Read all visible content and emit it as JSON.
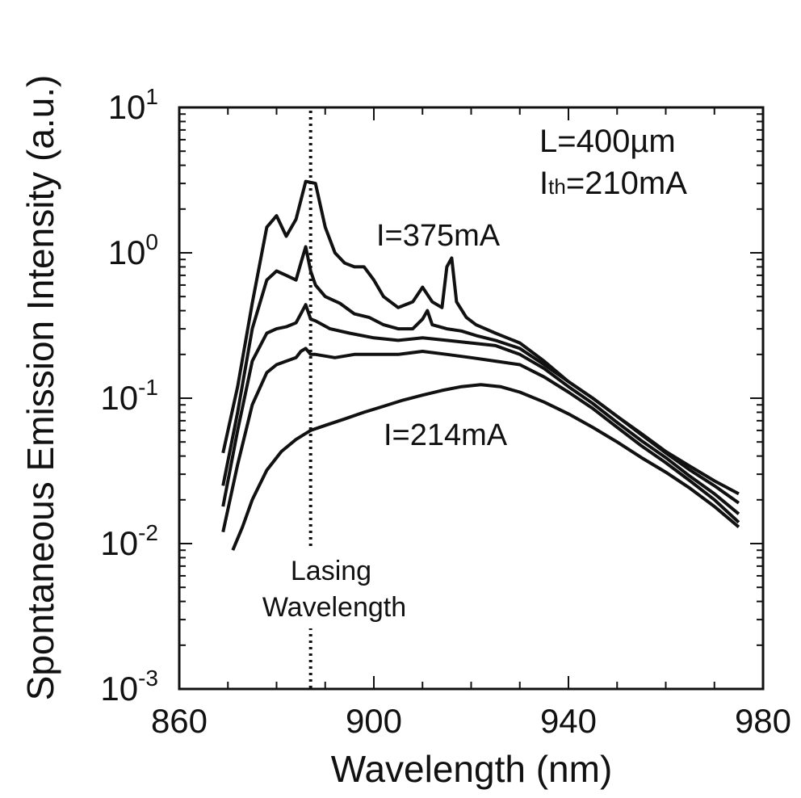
{
  "chart_data": {
    "type": "line",
    "xlabel": "Wavelength (nm)",
    "ylabel": "Spontaneous Emission Intensity (a.u.)",
    "xlim": [
      860,
      980
    ],
    "ylim": [
      0.001,
      10
    ],
    "yscale": "log",
    "x_ticks": [
      "860",
      "900",
      "940",
      "980"
    ],
    "y_ticks": [
      {
        "base": "10",
        "exp": "1"
      },
      {
        "base": "10",
        "exp": "0"
      },
      {
        "base": "10",
        "exp": "-1"
      },
      {
        "base": "10",
        "exp": "-2"
      },
      {
        "base": "10",
        "exp": "-3"
      }
    ],
    "grid": false,
    "color": "#111111",
    "lasing_wavelength": 887,
    "annotations": {
      "length": "L=400µm",
      "threshold_prefix": "I",
      "threshold_sub": "th",
      "threshold_value": "=210mA",
      "top_curve": "I=375mA",
      "bottom_curve": "I=214mA",
      "lasing_line1": "Lasing",
      "lasing_line2": "Wavelength"
    },
    "series": [
      {
        "name": "I=375mA",
        "x": [
          869,
          872,
          875,
          878,
          880,
          882,
          884,
          886,
          888,
          890,
          892,
          894,
          896,
          898,
          900,
          902,
          905,
          908,
          910,
          912,
          914,
          915,
          916,
          917,
          919,
          921,
          925,
          930,
          935,
          940,
          945,
          950,
          955,
          960,
          965,
          970,
          975
        ],
        "y": [
          0.042,
          0.12,
          0.45,
          1.5,
          1.8,
          1.3,
          1.7,
          3.1,
          3.0,
          1.5,
          1.0,
          0.85,
          0.8,
          0.8,
          0.65,
          0.5,
          0.42,
          0.46,
          0.58,
          0.46,
          0.42,
          0.8,
          0.92,
          0.46,
          0.36,
          0.32,
          0.28,
          0.24,
          0.18,
          0.13,
          0.1,
          0.075,
          0.057,
          0.043,
          0.034,
          0.027,
          0.022
        ]
      },
      {
        "name": "",
        "x": [
          869,
          872,
          875,
          878,
          880,
          882,
          884,
          885,
          886,
          887,
          888,
          890,
          893,
          896,
          899,
          902,
          905,
          908,
          910,
          911,
          912,
          915,
          918,
          921,
          925,
          930,
          935,
          940,
          945,
          950,
          955,
          960,
          965,
          970,
          975
        ],
        "y": [
          0.025,
          0.08,
          0.3,
          0.65,
          0.75,
          0.7,
          0.65,
          0.85,
          1.1,
          0.75,
          0.6,
          0.5,
          0.45,
          0.38,
          0.36,
          0.32,
          0.3,
          0.3,
          0.35,
          0.4,
          0.32,
          0.3,
          0.29,
          0.27,
          0.25,
          0.22,
          0.17,
          0.13,
          0.1,
          0.075,
          0.056,
          0.042,
          0.032,
          0.025,
          0.019
        ]
      },
      {
        "name": "",
        "x": [
          869,
          872,
          875,
          878,
          880,
          882,
          884,
          885,
          886,
          887,
          888,
          891,
          895,
          900,
          905,
          910,
          915,
          920,
          925,
          930,
          935,
          940,
          945,
          950,
          955,
          960,
          965,
          970,
          975
        ],
        "y": [
          0.018,
          0.06,
          0.18,
          0.28,
          0.3,
          0.31,
          0.33,
          0.38,
          0.44,
          0.35,
          0.34,
          0.3,
          0.28,
          0.26,
          0.25,
          0.26,
          0.25,
          0.24,
          0.23,
          0.2,
          0.16,
          0.12,
          0.092,
          0.068,
          0.051,
          0.039,
          0.029,
          0.022,
          0.016
        ]
      },
      {
        "name": "",
        "x": [
          869,
          872,
          875,
          878,
          880,
          882,
          884,
          885,
          886,
          887,
          888,
          892,
          896,
          900,
          905,
          910,
          915,
          920,
          925,
          930,
          935,
          940,
          945,
          950,
          955,
          960,
          965,
          970,
          975
        ],
        "y": [
          0.012,
          0.035,
          0.09,
          0.15,
          0.17,
          0.18,
          0.19,
          0.21,
          0.22,
          0.2,
          0.2,
          0.19,
          0.2,
          0.2,
          0.2,
          0.21,
          0.2,
          0.19,
          0.18,
          0.17,
          0.14,
          0.11,
          0.085,
          0.063,
          0.047,
          0.036,
          0.027,
          0.02,
          0.014
        ]
      },
      {
        "name": "I=214mA",
        "x": [
          871,
          873,
          875,
          878,
          881,
          884,
          887,
          890,
          894,
          898,
          902,
          906,
          910,
          914,
          918,
          922,
          926,
          930,
          935,
          940,
          945,
          950,
          955,
          960,
          965,
          970,
          975
        ],
        "y": [
          0.009,
          0.013,
          0.02,
          0.032,
          0.043,
          0.052,
          0.06,
          0.065,
          0.072,
          0.08,
          0.088,
          0.097,
          0.105,
          0.113,
          0.12,
          0.124,
          0.12,
          0.11,
          0.094,
          0.078,
          0.063,
          0.05,
          0.039,
          0.031,
          0.024,
          0.018,
          0.013
        ]
      }
    ]
  }
}
